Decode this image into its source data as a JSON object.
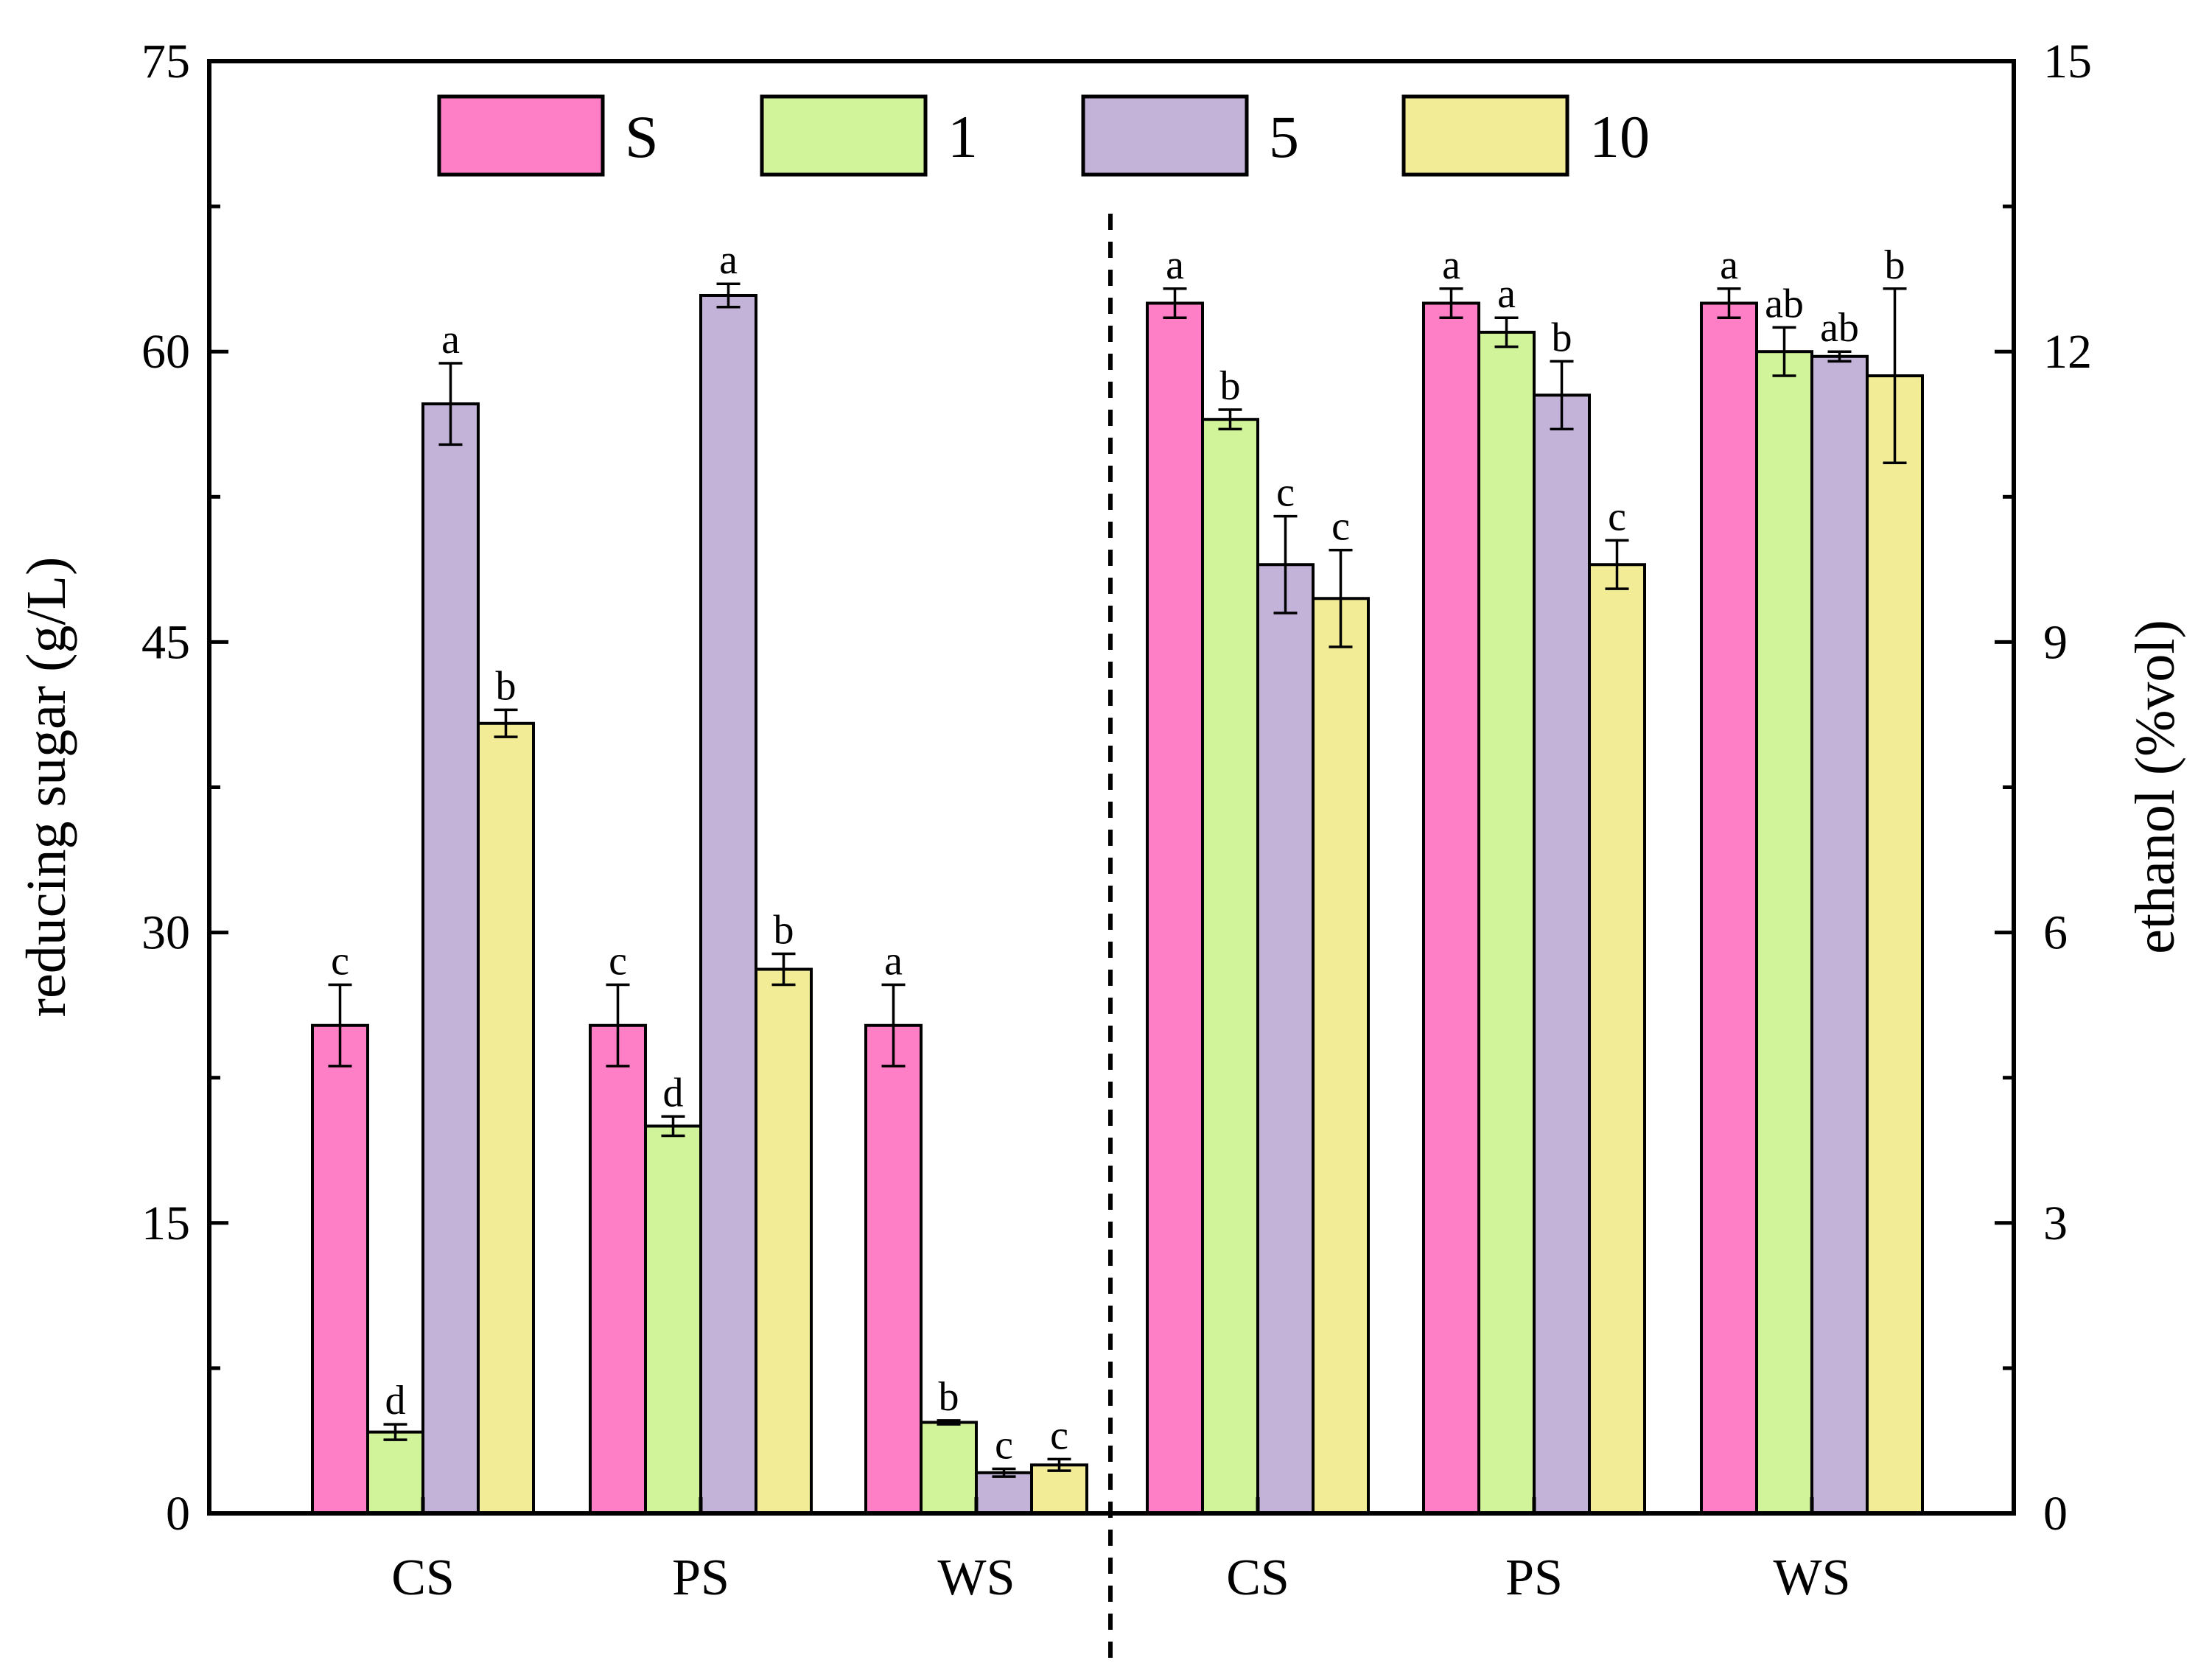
{
  "chart_data": {
    "type": "bar",
    "title": "",
    "left_axis": {
      "label": "reducing sugar (g/L)",
      "range": [
        0,
        75
      ],
      "ticks": [
        "0",
        "15",
        "30",
        "45",
        "60",
        "75"
      ]
    },
    "right_axis": {
      "label": "ethanol (%vol)",
      "range": [
        0,
        15
      ],
      "ticks": [
        "0",
        "3",
        "6",
        "9",
        "12",
        "15"
      ]
    },
    "grid": false,
    "legend_position": "top",
    "series": [
      {
        "name": "S",
        "color": "#ff7fc7"
      },
      {
        "name": "1",
        "color": "#d1f39a"
      },
      {
        "name": "5",
        "color": "#c3b3d8"
      },
      {
        "name": "10",
        "color": "#f2ec96"
      }
    ],
    "groups": [
      {
        "panel": "reducing_sugar",
        "category": "CS",
        "values": [
          25.2,
          4.2,
          57.3,
          40.8
        ],
        "errors": [
          2.1,
          0.4,
          2.1,
          0.7
        ],
        "labels": [
          "c",
          "d",
          "a",
          "b"
        ]
      },
      {
        "panel": "reducing_sugar",
        "category": "PS",
        "values": [
          25.2,
          20.0,
          62.9,
          28.1
        ],
        "errors": [
          2.1,
          0.5,
          0.6,
          0.8
        ],
        "labels": [
          "c",
          "d",
          "a",
          "b"
        ]
      },
      {
        "panel": "reducing_sugar",
        "category": "WS",
        "values": [
          25.2,
          4.7,
          2.1,
          2.5
        ],
        "errors": [
          2.1,
          0.1,
          0.2,
          0.3
        ],
        "labels": [
          "a",
          "b",
          "c",
          "c"
        ]
      },
      {
        "panel": "ethanol",
        "category": "CS",
        "values": [
          12.5,
          11.3,
          9.8,
          9.45
        ],
        "errors": [
          0.15,
          0.1,
          0.5,
          0.5
        ],
        "labels": [
          "a",
          "b",
          "c",
          "c"
        ]
      },
      {
        "panel": "ethanol",
        "category": "PS",
        "values": [
          12.5,
          12.2,
          11.55,
          9.8
        ],
        "errors": [
          0.15,
          0.15,
          0.35,
          0.25
        ],
        "labels": [
          "a",
          "a",
          "b",
          "c"
        ]
      },
      {
        "panel": "ethanol",
        "category": "WS",
        "values": [
          12.5,
          12.0,
          11.95,
          11.75
        ],
        "errors": [
          0.15,
          0.25,
          0.05,
          0.9
        ],
        "labels": [
          "a",
          "ab",
          "ab",
          "b"
        ]
      }
    ]
  }
}
